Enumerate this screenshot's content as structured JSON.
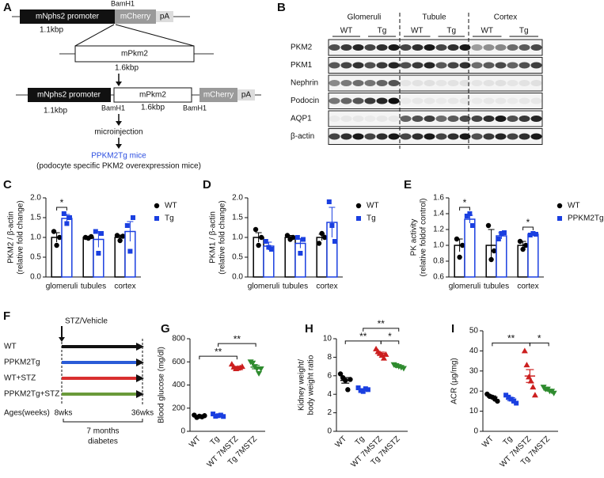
{
  "panel_labels": [
    "A",
    "B",
    "C",
    "D",
    "E",
    "F",
    "G",
    "H",
    "I"
  ],
  "construct": {
    "row1": [
      "mNphs2 promoter",
      "mCherry",
      "pA"
    ],
    "row1_site": "BamH1",
    "row1_size": "1.1kbp",
    "insert": "mPkm2",
    "insert_size": "1.6kbp",
    "row2": [
      "mNphs2 promoter",
      "mPkm2",
      "mCherry",
      "pA"
    ],
    "row2_labels": [
      "1.1kbp",
      "BamH1",
      "1.6kbp",
      "BamH1"
    ],
    "step": "microinjection",
    "result": "PPKM2Tg mice",
    "note": "(podocyte specific PKM2 overexpression mice)"
  },
  "blot": {
    "groups": [
      "Glomeruli",
      "Tubule",
      "Cortex"
    ],
    "lanes": [
      "WT",
      "Tg",
      "WT",
      "Tg",
      "WT",
      "Tg"
    ],
    "proteins": [
      "PKM2",
      "PKM1",
      "Nephrin",
      "Podocin",
      "AQP1",
      "β-actin"
    ]
  },
  "timeline": {
    "treatment": "STZ/Vehicle",
    "groups": [
      {
        "name": "WT",
        "color": "#111111"
      },
      {
        "name": "PPKM2Tg",
        "color": "#2a5bd7"
      },
      {
        "name": "WT+STZ",
        "color": "#d93030"
      },
      {
        "name": "PPKM2Tg+STZ",
        "color": "#6a9a3a"
      }
    ],
    "ages_label": "Ages(weeks)",
    "start": "8wks",
    "end": "36wks",
    "duration": [
      "7 months",
      "diabetes"
    ]
  },
  "chart_data": [
    {
      "type": "bar",
      "y_label": [
        "PKM2 / β-actin",
        "(relative fold change)"
      ],
      "categories": [
        "glomeruli",
        "tubules",
        "cortex"
      ],
      "ylim": [
        0,
        2
      ],
      "yticks": [
        {
          "value": 0,
          "label": "0.0"
        },
        0.5,
        {
          "value": 1,
          "label": "1.0"
        },
        1.5,
        {
          "value": 2,
          "label": "2.0"
        }
      ],
      "series": [
        {
          "name": "WT",
          "color": "#000000",
          "marker": "circle",
          "values": [
            1.0,
            1.0,
            1.0
          ],
          "errors": [
            0.12,
            0.02,
            0.06
          ],
          "points": [
            [
              1.15,
              0.8,
              1.0
            ],
            [
              1.0,
              0.98,
              1.02
            ],
            [
              1.05,
              0.92,
              1.03
            ]
          ]
        },
        {
          "name": "Tg",
          "color": "#1a3fe0",
          "marker": "square",
          "values": [
            1.48,
            0.95,
            1.15
          ],
          "errors": [
            0.1,
            0.2,
            0.25
          ],
          "points": [
            [
              1.6,
              1.35,
              1.5
            ],
            [
              1.15,
              0.6,
              1.1
            ],
            [
              1.3,
              0.65,
              1.5
            ]
          ]
        }
      ],
      "significance": [
        {
          "category": "glomeruli",
          "label": "*"
        }
      ]
    },
    {
      "type": "bar",
      "y_label": [
        "PKM1 / β-actin",
        "(relative fold change)"
      ],
      "categories": [
        "glomeruli",
        "tubules",
        "cortex"
      ],
      "ylim": [
        0,
        2
      ],
      "yticks": [
        {
          "value": 0,
          "label": "0.0"
        },
        0.5,
        {
          "value": 1,
          "label": "1.0"
        },
        1.5,
        {
          "value": 2,
          "label": "2.0"
        }
      ],
      "series": [
        {
          "name": "WT",
          "color": "#000000",
          "marker": "circle",
          "values": [
            1.0,
            1.0,
            1.0
          ],
          "errors": [
            0.12,
            0.05,
            0.08
          ],
          "points": [
            [
              1.2,
              0.8,
              1.0
            ],
            [
              1.05,
              0.95,
              1.0
            ],
            [
              0.85,
              1.1,
              1.0
            ]
          ]
        },
        {
          "name": "Tg",
          "color": "#1a3fe0",
          "marker": "square",
          "values": [
            0.78,
            0.85,
            1.38
          ],
          "errors": [
            0.1,
            0.12,
            0.38
          ],
          "points": [
            [
              0.9,
              0.75,
              0.7
            ],
            [
              1.0,
              0.6,
              0.95
            ],
            [
              1.9,
              1.3,
              0.9
            ]
          ]
        }
      ],
      "significance": []
    },
    {
      "type": "bar",
      "y_label": [
        "PK activity",
        "(relative foldof control)"
      ],
      "categories": [
        "glomeruli",
        "tubules",
        "cortex"
      ],
      "ylim": [
        0.6,
        1.6
      ],
      "yticks": [
        0.6,
        0.8,
        {
          "value": 1,
          "label": "1.0"
        },
        1.2,
        1.4,
        1.6
      ],
      "series": [
        {
          "name": "WT",
          "color": "#000000",
          "marker": "circle",
          "values": [
            1.0,
            1.0,
            1.0
          ],
          "errors": [
            0.08,
            0.2,
            0.05
          ],
          "points": [
            [
              1.08,
              0.85,
              1.0
            ],
            [
              1.25,
              0.82,
              0.93
            ],
            [
              1.05,
              0.95,
              1.0
            ]
          ]
        },
        {
          "name": "PPKM2Tg",
          "color": "#1a3fe0",
          "marker": "square",
          "values": [
            1.33,
            1.12,
            1.14
          ],
          "errors": [
            0.05,
            0.04,
            0.01
          ],
          "points": [
            [
              1.37,
              1.4,
              1.25
            ],
            [
              1.08,
              1.15,
              1.16
            ],
            [
              1.13,
              1.15,
              1.14
            ]
          ]
        }
      ],
      "significance": [
        {
          "category": "glomeruli",
          "label": "*"
        },
        {
          "category": "cortex",
          "label": "*"
        }
      ]
    },
    {
      "type": "dot",
      "y_label": [
        "Blood glucose (mg/dl)"
      ],
      "categories": [
        "WT",
        "Tg",
        "WT 7MSTZ",
        "Tg 7MSTZ"
      ],
      "colors": [
        "#000000",
        "#1a3fe0",
        "#cc1f1f",
        "#2e8b2e"
      ],
      "markers": [
        "circle",
        "square",
        "triangle",
        "triangle-down"
      ],
      "ylim": [
        0,
        800
      ],
      "yticks": [
        0,
        200,
        400,
        600,
        800
      ],
      "values": [
        130,
        137,
        555,
        555
      ],
      "errors": [
        4,
        4,
        6,
        15
      ],
      "points": [
        [
          140,
          120,
          130,
          125,
          135
        ],
        [
          150,
          130,
          135,
          140,
          128
        ],
        [
          580,
          555,
          540,
          545,
          550,
          560
        ],
        [
          600,
          590,
          560,
          540,
          500,
          540
        ]
      ],
      "significance": [
        {
          "between": [
            "WT",
            "WT 7MSTZ"
          ],
          "label": "**"
        },
        {
          "between": [
            "Tg",
            "Tg 7MSTZ"
          ],
          "label": "**"
        }
      ]
    },
    {
      "type": "dot",
      "y_label": [
        "Kidney weight/",
        "body weight ratio"
      ],
      "categories": [
        "WT",
        "Tg",
        "WT 7MSTZ",
        "Tg 7MSTZ"
      ],
      "colors": [
        "#000000",
        "#1a3fe0",
        "#cc1f1f",
        "#2e8b2e"
      ],
      "markers": [
        "circle",
        "square",
        "triangle",
        "triangle-down"
      ],
      "ylim": [
        0,
        10
      ],
      "yticks": [
        0,
        2,
        4,
        6,
        8,
        10
      ],
      "values": [
        5.5,
        4.5,
        8.4,
        7.0
      ],
      "errors": [
        0.3,
        0.1,
        0.15,
        0.1
      ],
      "points": [
        [
          6.2,
          5.8,
          5.5,
          4.5,
          5.6
        ],
        [
          4.7,
          4.4,
          4.3,
          4.6,
          4.5
        ],
        [
          8.9,
          8.6,
          8.4,
          8.2,
          7.9,
          8.3
        ],
        [
          7.2,
          7.1,
          7.0,
          6.9,
          6.8
        ]
      ],
      "significance": [
        {
          "between": [
            "WT",
            "WT 7MSTZ"
          ],
          "label": "**"
        },
        {
          "between": [
            "WT 7MSTZ",
            "Tg 7MSTZ"
          ],
          "label": "*"
        },
        {
          "between": [
            "Tg",
            "Tg 7MSTZ"
          ],
          "label": "**"
        }
      ]
    },
    {
      "type": "dot",
      "y_label": [
        "ACR (μg/mg)"
      ],
      "categories": [
        "WT",
        "Tg",
        "WT 7MSTZ",
        "Tg 7MSTZ"
      ],
      "colors": [
        "#000000",
        "#1a3fe0",
        "#cc1f1f",
        "#2e8b2e"
      ],
      "markers": [
        "circle",
        "square",
        "triangle",
        "triangle-down"
      ],
      "ylim": [
        0,
        50
      ],
      "yticks": [
        0,
        10,
        20,
        30,
        40,
        50
      ],
      "values": [
        17,
        16,
        27.5,
        20.5
      ],
      "errors": [
        0.6,
        0.7,
        3.2,
        0.4
      ],
      "points": [
        [
          18.5,
          17.5,
          17,
          16,
          15
        ],
        [
          18,
          17,
          16,
          15,
          14
        ],
        [
          40,
          33,
          27,
          25,
          22,
          18
        ],
        [
          22,
          21,
          21,
          20,
          20,
          19
        ]
      ],
      "significance": [
        {
          "between": [
            "WT",
            "WT 7MSTZ"
          ],
          "label": "**"
        },
        {
          "between": [
            "WT 7MSTZ",
            "Tg 7MSTZ"
          ],
          "label": "*"
        }
      ]
    }
  ]
}
